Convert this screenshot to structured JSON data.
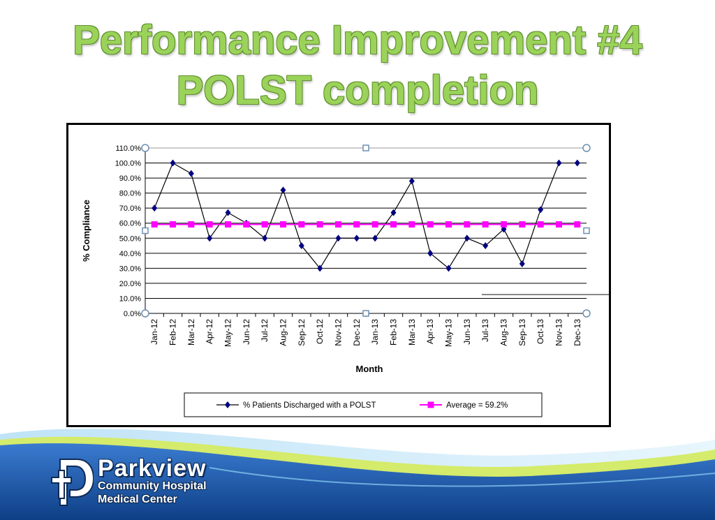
{
  "slide": {
    "title_line1": "Performance Improvement #4",
    "title_line2": "POLST completion"
  },
  "logo": {
    "name": "Parkview",
    "line2": "Community Hospital",
    "line3": "Medical Center"
  },
  "colors": {
    "title": "#9bd35a",
    "series_main": "#000080",
    "series_average": "#ff00ff",
    "footer_blue": "#1f5fae"
  },
  "chart_data": {
    "type": "line",
    "xlabel": "Month",
    "ylabel": "% Compliance",
    "ylim": [
      0,
      110
    ],
    "y_ticks": [
      "0.0%",
      "10.0%",
      "20.0%",
      "30.0%",
      "40.0%",
      "50.0%",
      "60.0%",
      "70.0%",
      "80.0%",
      "90.0%",
      "100.0%",
      "110.0%"
    ],
    "grid": true,
    "legend_position": "bottom",
    "categories": [
      "Jan-12",
      "Feb-12",
      "Mar-12",
      "Apr-12",
      "May-12",
      "Jun-12",
      "Jul-12",
      "Aug-12",
      "Sep-12",
      "Oct-12",
      "Nov-12",
      "Dec-12",
      "Jan-13",
      "Feb-13",
      "Mar-13",
      "Apr-13",
      "May-13",
      "Jun-13",
      "Jul-13",
      "Aug-13",
      "Sep-13",
      "Oct-13",
      "Nov-13",
      "Dec-13"
    ],
    "series": [
      {
        "name": "% Patients Discharged with a POLST",
        "marker": "diamond",
        "values": [
          70,
          100,
          93,
          50,
          67,
          60,
          50,
          82,
          45,
          30,
          50,
          50,
          50,
          67,
          88,
          40,
          30,
          50,
          45,
          56,
          33,
          69,
          100,
          100
        ]
      },
      {
        "name": "Average =  59.2%",
        "marker": "square",
        "values": [
          59.2,
          59.2,
          59.2,
          59.2,
          59.2,
          59.2,
          59.2,
          59.2,
          59.2,
          59.2,
          59.2,
          59.2,
          59.2,
          59.2,
          59.2,
          59.2,
          59.2,
          59.2,
          59.2,
          59.2,
          59.2,
          59.2,
          59.2,
          59.2
        ]
      }
    ]
  }
}
